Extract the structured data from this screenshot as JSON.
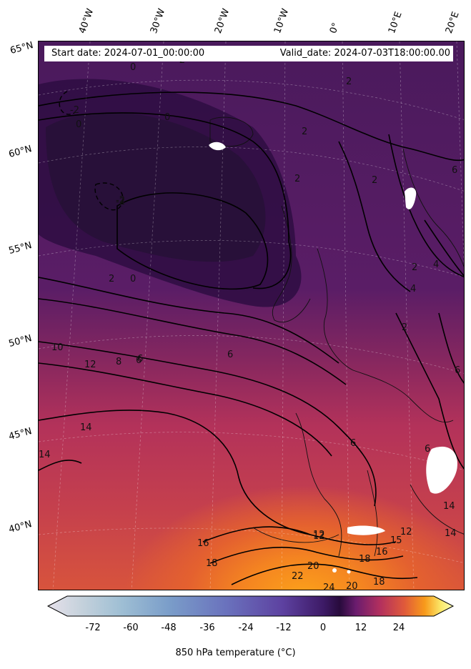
{
  "info": {
    "start_date": "Start date: 2024-07-01_00:00:00",
    "valid_date": "Valid_date: 2024-07-03T18:00:00.00"
  },
  "longitudes": [
    "40°W",
    "30°W",
    "20°W",
    "10°W",
    "0°",
    "10°E",
    "20°E"
  ],
  "latitudes": [
    "65°N",
    "60°N",
    "55°N",
    "50°N",
    "45°N",
    "40°N"
  ],
  "contour_labels": [
    "-2",
    "0",
    "2",
    "-2",
    "0",
    "2",
    "2",
    "2",
    "6",
    "2",
    "4",
    "0",
    "-2",
    "0",
    "-2",
    "2",
    "6",
    "6",
    "6",
    "4",
    "2",
    "10",
    "12",
    "8",
    "6",
    "6",
    "14",
    "14",
    "6",
    "16",
    "18",
    "12",
    "15",
    "12",
    "14",
    "16",
    "18",
    "20",
    "22",
    "24",
    "18",
    "20",
    "14",
    "12"
  ],
  "colorbar": {
    "ticks": [
      "-72",
      "-60",
      "-48",
      "-36",
      "-24",
      "-12",
      "0",
      "12",
      "24"
    ],
    "label": "850 hPa temperature (°C)",
    "colors": [
      "#e6e1ea",
      "#c6d2dc",
      "#9fbfd4",
      "#7a9dc9",
      "#6a72bd",
      "#5d41a0",
      "#3d1a66",
      "#280b3c",
      "#6a1c6e",
      "#b3305e",
      "#e05a3a",
      "#f89a1b",
      "#fbe96a",
      "#fcfdb5"
    ]
  }
}
